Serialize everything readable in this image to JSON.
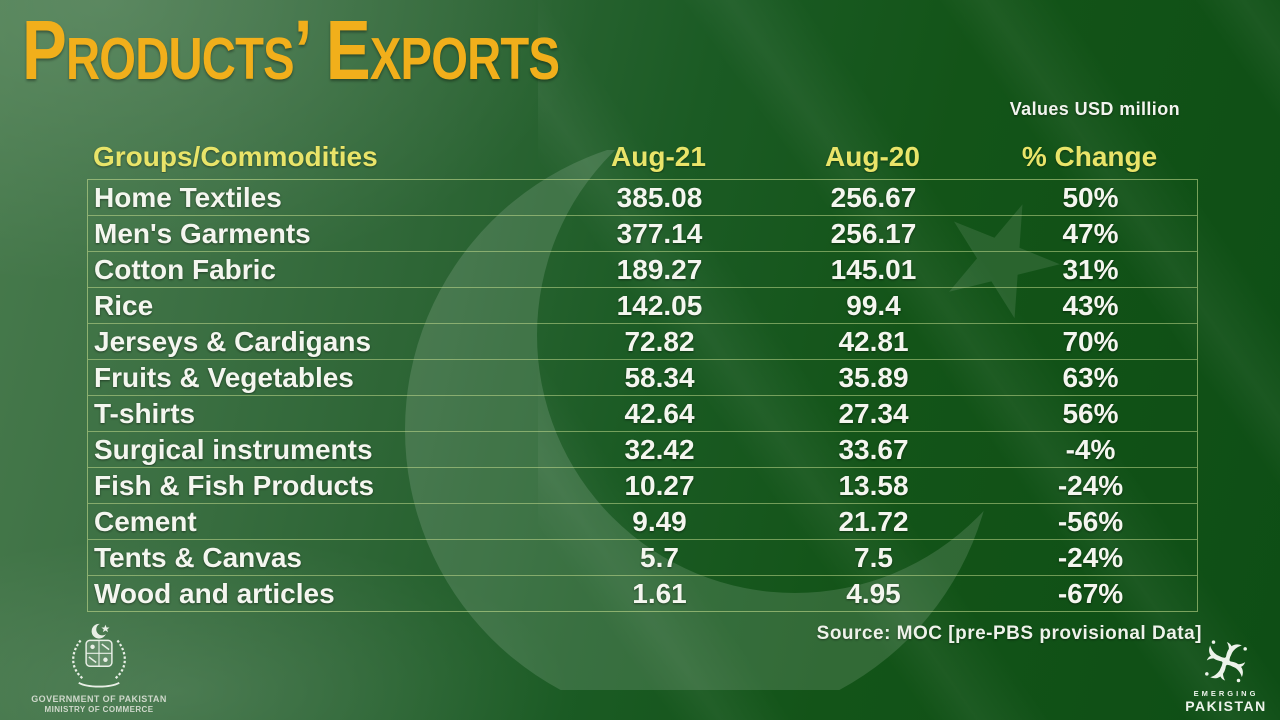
{
  "title": "Products’ Exports",
  "values_note": "Values USD million",
  "source": "Source: MOC [pre-PBS provisional Data]",
  "government_seal": {
    "line1": "GOVERNMENT OF PAKISTAN",
    "line2": "MINISTRY OF COMMERCE"
  },
  "emerging_logo": {
    "line1": "EMERGING",
    "line2": "PAKISTAN"
  },
  "colors": {
    "title_gold": "#f1af1b",
    "header_yellow": "#e9e469",
    "flag_green_dark": "#0e4e15",
    "flag_green_light": "#487b4d",
    "row_line": "#cde494",
    "body_text": "#f4f6ef"
  },
  "chart_data": {
    "type": "table",
    "title": "Products’ Exports",
    "unit": "Values USD million",
    "columns": [
      "Groups/Commodities",
      "Aug-21",
      "Aug-20",
      "% Change"
    ],
    "rows": [
      [
        "Home Textiles",
        "385.08",
        "256.67",
        "50%"
      ],
      [
        "Men's Garments",
        "377.14",
        "256.17",
        "47%"
      ],
      [
        "Cotton Fabric",
        "189.27",
        "145.01",
        "31%"
      ],
      [
        "Rice",
        "142.05",
        "99.4",
        "43%"
      ],
      [
        "Jerseys & Cardigans",
        "72.82",
        "42.81",
        "70%"
      ],
      [
        "Fruits & Vegetables",
        "58.34",
        "35.89",
        "63%"
      ],
      [
        "T-shirts",
        "42.64",
        "27.34",
        "56%"
      ],
      [
        "Surgical instruments",
        "32.42",
        "33.67",
        "-4%"
      ],
      [
        "Fish & Fish Products",
        "10.27",
        "13.58",
        "-24%"
      ],
      [
        "Cement",
        "9.49",
        "21.72",
        "-56%"
      ],
      [
        "Tents & Canvas",
        "5.7",
        "7.5",
        "-24%"
      ],
      [
        "Wood and articles",
        "1.61",
        "4.95",
        "-67%"
      ]
    ],
    "source": "Source: MOC [pre-PBS provisional Data]"
  }
}
